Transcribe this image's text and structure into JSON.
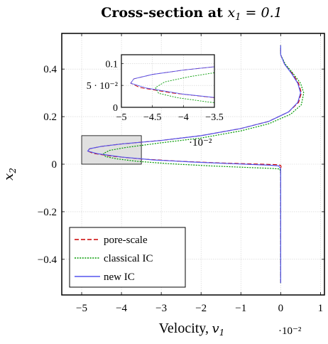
{
  "chart_data": {
    "type": "line",
    "title": "Cross-section at x1 = 0.1",
    "title_parts": {
      "prefix": "Cross-section at ",
      "var": "x",
      "sub": "1",
      "suffix": " = 0.1"
    },
    "xlabel": "Velocity, v1",
    "xlabel_parts": {
      "word": "Velocity,",
      "var": "v",
      "sub": "1"
    },
    "ylabel": "x2",
    "ylabel_parts": {
      "var": "x",
      "sub": "2"
    },
    "x_multiplier": "·10⁻²",
    "xlim": [
      -5.5,
      1.1
    ],
    "ylim": [
      -0.55,
      0.55
    ],
    "xticks": [
      -5,
      -4,
      -3,
      -2,
      -1,
      0,
      1
    ],
    "yticks": [
      -0.4,
      -0.2,
      0,
      0.2,
      0.4
    ],
    "xtick_labels": [
      "−5",
      "−4",
      "−3",
      "−2",
      "−1",
      "0",
      "1"
    ],
    "ytick_labels": [
      "−0.4",
      "−0.2",
      "0",
      "0.2",
      "0.4"
    ],
    "grid": true,
    "legend_position": "bottom-left",
    "highlight_box": {
      "x": [
        -5.0,
        -3.5
      ],
      "y": [
        0.0,
        0.12
      ]
    },
    "series": [
      {
        "name": "pore-scale",
        "color": "#cc0000",
        "dash": "dashed",
        "x": [
          0,
          0,
          0,
          0,
          0,
          0,
          0.01,
          0,
          -0.1,
          -0.5,
          -1.5,
          -2.5,
          -3.5,
          -4.2,
          -4.7,
          -4.85,
          -4.8,
          -4.5,
          -4.0,
          -3.0,
          -2.0,
          -1.0,
          -0.3,
          0.2,
          0.45,
          0.52,
          0.45,
          0.3,
          0.1,
          0.0,
          0.0
        ],
        "y": [
          -0.5,
          -0.4,
          -0.2,
          -0.1,
          -0.04,
          -0.02,
          -0.01,
          -0.005,
          -0.002,
          0.0,
          0.005,
          0.012,
          0.022,
          0.033,
          0.045,
          0.055,
          0.065,
          0.075,
          0.085,
          0.1,
          0.12,
          0.15,
          0.18,
          0.22,
          0.26,
          0.3,
          0.34,
          0.38,
          0.42,
          0.46,
          0.5
        ]
      },
      {
        "name": "classical IC",
        "color": "#009900",
        "dash": "dotted",
        "x": [
          0,
          0,
          0,
          0,
          0,
          -0.02,
          -0.2,
          -0.8,
          -1.8,
          -2.8,
          -3.6,
          -4.1,
          -4.4,
          -4.45,
          -4.3,
          -3.9,
          -3.0,
          -2.0,
          -1.0,
          -0.3,
          0.25,
          0.52,
          0.58,
          0.5,
          0.32,
          0.12,
          0.0,
          0.0
        ],
        "y": [
          -0.5,
          -0.4,
          -0.2,
          -0.1,
          -0.04,
          -0.02,
          -0.018,
          -0.014,
          -0.007,
          0.002,
          0.012,
          0.022,
          0.032,
          0.045,
          0.058,
          0.07,
          0.09,
          0.11,
          0.14,
          0.17,
          0.21,
          0.25,
          0.3,
          0.34,
          0.38,
          0.42,
          0.46,
          0.5
        ]
      },
      {
        "name": "new IC",
        "color": "#5555ee",
        "dash": "solid",
        "x": [
          0,
          0,
          0,
          0,
          0,
          0,
          -0.05,
          -0.3,
          -1.2,
          -2.2,
          -3.2,
          -4.0,
          -4.6,
          -4.85,
          -4.8,
          -4.5,
          -4.0,
          -3.0,
          -2.0,
          -1.0,
          -0.3,
          0.2,
          0.43,
          0.5,
          0.43,
          0.28,
          0.1,
          0.0,
          0.0
        ],
        "y": [
          -0.5,
          -0.4,
          -0.2,
          -0.1,
          -0.04,
          -0.02,
          -0.007,
          -0.004,
          0.002,
          0.009,
          0.018,
          0.03,
          0.044,
          0.055,
          0.065,
          0.075,
          0.085,
          0.1,
          0.12,
          0.15,
          0.18,
          0.22,
          0.26,
          0.3,
          0.34,
          0.38,
          0.42,
          0.46,
          0.5
        ]
      }
    ],
    "inset": {
      "xlim": [
        -5.0,
        -3.5
      ],
      "ylim": [
        0.0,
        0.12
      ],
      "xticks": [
        -5,
        -4.5,
        -4,
        -3.5
      ],
      "yticks": [
        0,
        0.05,
        0.1
      ],
      "xtick_labels": [
        "−5",
        "−4.5",
        "−4",
        "−3.5"
      ],
      "ytick_labels": [
        "0",
        "5 · 10⁻²",
        "0.1"
      ],
      "x_multiplier": "·10⁻²"
    }
  }
}
